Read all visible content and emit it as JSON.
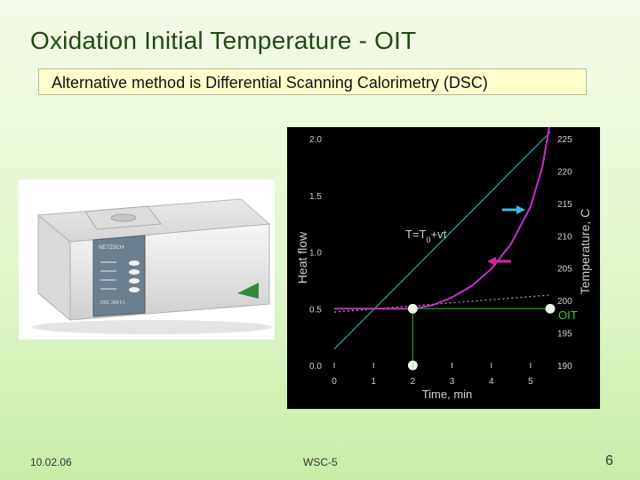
{
  "slide": {
    "title": "Oxidation Initial Temperature - OIT",
    "subtitle": "Alternative method is Differential Scanning Calorimetry (DSC)",
    "footer_date": "10.02.06",
    "footer_center": "WSC-5",
    "page_number": "6"
  },
  "photo": {
    "brand": "NETZSCH",
    "model": "DSC 204 F1"
  },
  "chart_data": {
    "type": "line",
    "xlabel": "Time, min",
    "ylabel_left": "Heat flow",
    "ylabel_right": "Temperature, C",
    "x_ticks": [
      0,
      1,
      2,
      3,
      4,
      5
    ],
    "y_left_ticks": [
      "0.0",
      "0.5",
      "1.0",
      "1.5",
      "2.0"
    ],
    "y_right_ticks": [
      "190",
      "195",
      "200",
      "205",
      "210",
      "215",
      "220",
      "225"
    ],
    "xlim": [
      0,
      5.5
    ],
    "ylim_left": [
      0,
      2.0
    ],
    "ylim_right": [
      190,
      225
    ],
    "equation": "T=T0+vt",
    "oit_label": "OIT",
    "colors": {
      "temperature": "#2fa8a8",
      "heat_flow": "#c92ecb",
      "baseline": "#aaaaaa",
      "marker_lines": "#1ea01e",
      "points": "#e6f7e6",
      "arrow_temp": "#3fb6e8",
      "arrow_heat": "#d6249f",
      "text": "#cfcfcf"
    },
    "series": [
      {
        "role": "temperature",
        "axis": "right",
        "x": [
          0,
          5.5
        ],
        "y": [
          192.5,
          226
        ]
      },
      {
        "role": "heat_flow",
        "axis": "left",
        "x": [
          0,
          1.0,
          2.0,
          2.5,
          3.0,
          3.5,
          4.0,
          4.5,
          5.0,
          5.3,
          5.5
        ],
        "y": [
          0.5,
          0.5,
          0.5,
          0.53,
          0.6,
          0.7,
          0.85,
          1.07,
          1.4,
          1.75,
          2.15
        ]
      },
      {
        "role": "baseline",
        "axis": "left",
        "x": [
          0,
          5.5
        ],
        "y": [
          0.47,
          0.62
        ]
      }
    ],
    "points": [
      {
        "x": 2.0,
        "y": 0.5,
        "axis": "left"
      },
      {
        "x": 2.0,
        "y": 0.0,
        "axis": "left"
      },
      {
        "x": 5.5,
        "y": 0.5,
        "axis": "left"
      }
    ]
  }
}
